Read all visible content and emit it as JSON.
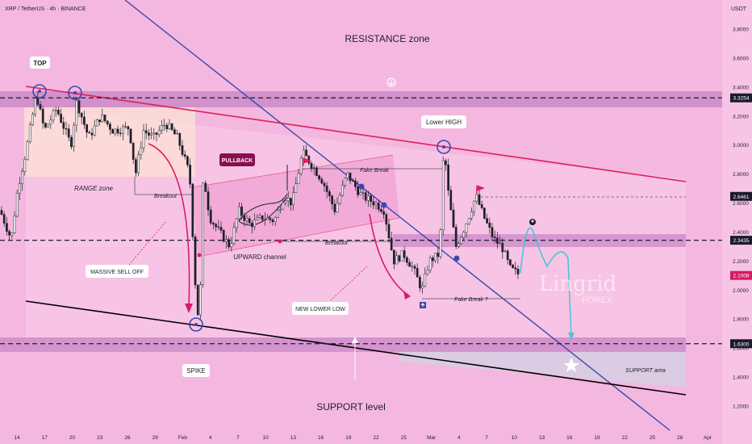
{
  "header": {
    "symbol": "XRP / TetherUS · 4h · BINANCE",
    "currency": "USDT"
  },
  "chart_data": {
    "type": "candlestick",
    "y_axis": {
      "range": [
        1.08,
        3.93
      ],
      "ticks": [
        "3.8000",
        "3.6000",
        "3.4000",
        "3.2000",
        "3.0000",
        "2.8000",
        "2.6000",
        "2.4000",
        "2.2000",
        "2.0000",
        "1.8000",
        "1.6000",
        "1.4000",
        "1.2000"
      ]
    },
    "x_axis": {
      "ticks": [
        "14",
        "17",
        "20",
        "23",
        "26",
        "29",
        "Feb",
        "4",
        "7",
        "10",
        "13",
        "16",
        "19",
        "22",
        "25",
        "Mar",
        "4",
        "7",
        "10",
        "13",
        "16",
        "19",
        "22",
        "25",
        "28",
        "Apr"
      ]
    },
    "price_tags": [
      {
        "value": 3.3254,
        "label": "3.3254",
        "color": "#1a1a2e"
      },
      {
        "value": 2.6461,
        "label": "2.6461",
        "color": "#1a1a2e"
      },
      {
        "value": 2.3435,
        "label": "2.3435",
        "color": "#1a1a2e"
      },
      {
        "value": 2.1008,
        "label": "2.1008",
        "color": "#d81b60"
      },
      {
        "value": 1.63,
        "label": "1.6300",
        "color": "#1a1a2e"
      }
    ],
    "zones": [
      {
        "label": "RESISTANCE zone",
        "range": [
          3.28,
          3.37
        ]
      },
      {
        "label": "SUPPORT area",
        "range": [
          1.6,
          1.68
        ]
      }
    ],
    "annotations": {
      "resistance": "RESISTANCE zone",
      "top": "TOP",
      "range_zone": "RANGE zone",
      "breakout_1": "Breakout",
      "pullback": "PULLBACK",
      "fake_break_1": "Fake Break",
      "lower_high": "Lower HIGH",
      "upward_channel": "UPWARD channel",
      "breakout_2": "Breakout",
      "massive_sell_off": "MASSIVE SELL OFF",
      "new_lower_low": "NEW LOWER LOW",
      "fake_break_2": "Fake Break ?",
      "spike": "SPIKE",
      "support_area": "SUPPORT area",
      "support_level": "SUPPORT level"
    },
    "watermark": {
      "line1": "Lingrid",
      "line2": "FOREX"
    }
  },
  "colors": {
    "background": "#f4b8e0",
    "bull": "#1e1f29",
    "bear": "#1e1f29",
    "channel_line": "#e01e5a",
    "trend_line": "#3949ab",
    "support_line": "#000000",
    "label_bg": "#ffffff",
    "pullback_bg": "#880e4f"
  }
}
